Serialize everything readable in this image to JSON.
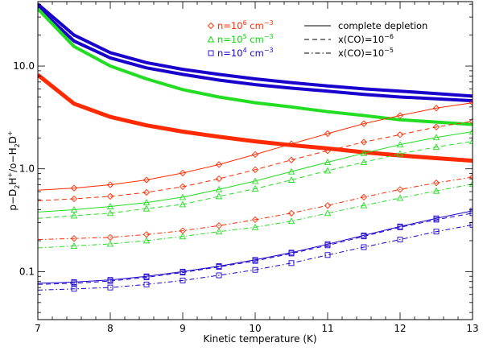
{
  "chart_data": {
    "type": "line",
    "title": "",
    "xlabel": "Kinetic temperature (K)",
    "ylabel_parts": [
      "p−D",
      "2",
      "H",
      "+",
      "/o−H",
      "2",
      "D",
      "+"
    ],
    "xlim": [
      7,
      13
    ],
    "ylim_log10": [
      -1.467,
      1.627
    ],
    "xticks": [
      7,
      8,
      9,
      10,
      11,
      12,
      13
    ],
    "yticks": [
      0.1,
      1.0,
      10.0
    ],
    "ytick_labels": [
      "0.1",
      "1.0",
      "10.0"
    ],
    "x": [
      7,
      7.5,
      8,
      8.5,
      9,
      9.5,
      10,
      10.5,
      11,
      11.5,
      12,
      12.5,
      13
    ],
    "legend_density": [
      {
        "id": "n6",
        "base": "n=10",
        "exp": "6",
        "unit": " cm",
        "unit_exp": "−3",
        "marker": "diamond",
        "color": "#ff2a00"
      },
      {
        "id": "n5",
        "base": "n=10",
        "exp": "5",
        "unit": " cm",
        "unit_exp": "−3",
        "marker": "triangle",
        "color": "#00dd00"
      },
      {
        "id": "n4",
        "base": "n=10",
        "exp": "4",
        "unit": " cm",
        "unit_exp": "−3",
        "marker": "square",
        "color": "#1a00cc"
      }
    ],
    "legend_style": [
      {
        "id": "solid",
        "base": "complete depletion",
        "exp": "",
        "dash": "none"
      },
      {
        "id": "dashed",
        "base": "x(CO)=10",
        "exp": "−6",
        "dash": "dashed"
      },
      {
        "id": "dashdot",
        "base": "x(CO)=10",
        "exp": "−5",
        "dash": "dashdot"
      }
    ],
    "series": [
      {
        "name": "n4-complete-thick",
        "color": "#1a00cc",
        "width": 4,
        "dash": "none",
        "marker": "none",
        "values": [
          40.0,
          20.0,
          13.5,
          10.8,
          9.3,
          8.3,
          7.5,
          6.9,
          6.4,
          6.0,
          5.7,
          5.4,
          5.1
        ]
      },
      {
        "name": "n4-dashed-thick",
        "color": "#1a00cc",
        "width": 4,
        "dash": "none",
        "marker": "none",
        "values": [
          37.0,
          17.5,
          12.0,
          9.6,
          8.3,
          7.3,
          6.6,
          6.1,
          5.7,
          5.3,
          5.0,
          4.8,
          4.6
        ]
      },
      {
        "name": "n5-complete-thick",
        "color": "#22dd22",
        "width": 4,
        "dash": "none",
        "marker": "none",
        "values": [
          36.0,
          15.5,
          10.0,
          7.5,
          5.9,
          5.0,
          4.4,
          4.0,
          3.6,
          3.3,
          3.0,
          2.85,
          2.7
        ]
      },
      {
        "name": "n6-complete-thick",
        "color": "#ff2a00",
        "width": 5,
        "dash": "none",
        "marker": "none",
        "values": [
          8.2,
          4.3,
          3.2,
          2.65,
          2.3,
          2.05,
          1.85,
          1.7,
          1.58,
          1.45,
          1.35,
          1.27,
          1.2
        ]
      },
      {
        "name": "n6-complete",
        "color": "#ff2a00",
        "width": 1,
        "dash": "none",
        "marker": "diamond",
        "values": [
          0.62,
          0.65,
          0.7,
          0.78,
          0.91,
          1.1,
          1.38,
          1.75,
          2.2,
          2.75,
          3.3,
          3.9,
          4.4
        ]
      },
      {
        "name": "n6-co6",
        "color": "#ff2a00",
        "width": 1,
        "dash": "dashed",
        "marker": "diamond",
        "values": [
          0.49,
          0.51,
          0.54,
          0.59,
          0.67,
          0.8,
          0.98,
          1.22,
          1.5,
          1.82,
          2.15,
          2.55,
          2.9
        ]
      },
      {
        "name": "n5-complete",
        "color": "#22dd22",
        "width": 1,
        "dash": "none",
        "marker": "triangle",
        "values": [
          0.38,
          0.4,
          0.43,
          0.47,
          0.53,
          0.63,
          0.76,
          0.94,
          1.16,
          1.42,
          1.72,
          2.02,
          2.3
        ]
      },
      {
        "name": "n5-co6",
        "color": "#22dd22",
        "width": 1,
        "dash": "dashed",
        "marker": "triangle",
        "values": [
          0.33,
          0.35,
          0.37,
          0.41,
          0.45,
          0.54,
          0.64,
          0.78,
          0.96,
          1.16,
          1.4,
          1.63,
          1.85
        ]
      },
      {
        "name": "n6-co5",
        "color": "#ff2a00",
        "width": 1,
        "dash": "dashdot",
        "marker": "diamond",
        "values": [
          0.205,
          0.21,
          0.215,
          0.23,
          0.25,
          0.28,
          0.32,
          0.37,
          0.44,
          0.53,
          0.63,
          0.73,
          0.83
        ]
      },
      {
        "name": "n5-co5",
        "color": "#22dd22",
        "width": 1,
        "dash": "dashdot",
        "marker": "triangle",
        "values": [
          0.17,
          0.178,
          0.186,
          0.2,
          0.22,
          0.245,
          0.27,
          0.31,
          0.37,
          0.44,
          0.52,
          0.61,
          0.71
        ]
      },
      {
        "name": "n4-complete",
        "color": "#1a00cc",
        "width": 1,
        "dash": "none",
        "marker": "square",
        "values": [
          0.077,
          0.079,
          0.083,
          0.09,
          0.1,
          0.113,
          0.13,
          0.153,
          0.185,
          0.225,
          0.275,
          0.33,
          0.39
        ]
      },
      {
        "name": "n4-co6",
        "color": "#1a00cc",
        "width": 1,
        "dash": "dashed",
        "marker": "square",
        "values": [
          0.075,
          0.077,
          0.081,
          0.088,
          0.098,
          0.111,
          0.127,
          0.15,
          0.18,
          0.22,
          0.27,
          0.32,
          0.37
        ]
      },
      {
        "name": "n4-co5",
        "color": "#1a00cc",
        "width": 1,
        "dash": "dashdot",
        "marker": "square",
        "values": [
          0.066,
          0.068,
          0.07,
          0.075,
          0.082,
          0.092,
          0.104,
          0.121,
          0.145,
          0.173,
          0.205,
          0.245,
          0.285
        ]
      }
    ]
  }
}
